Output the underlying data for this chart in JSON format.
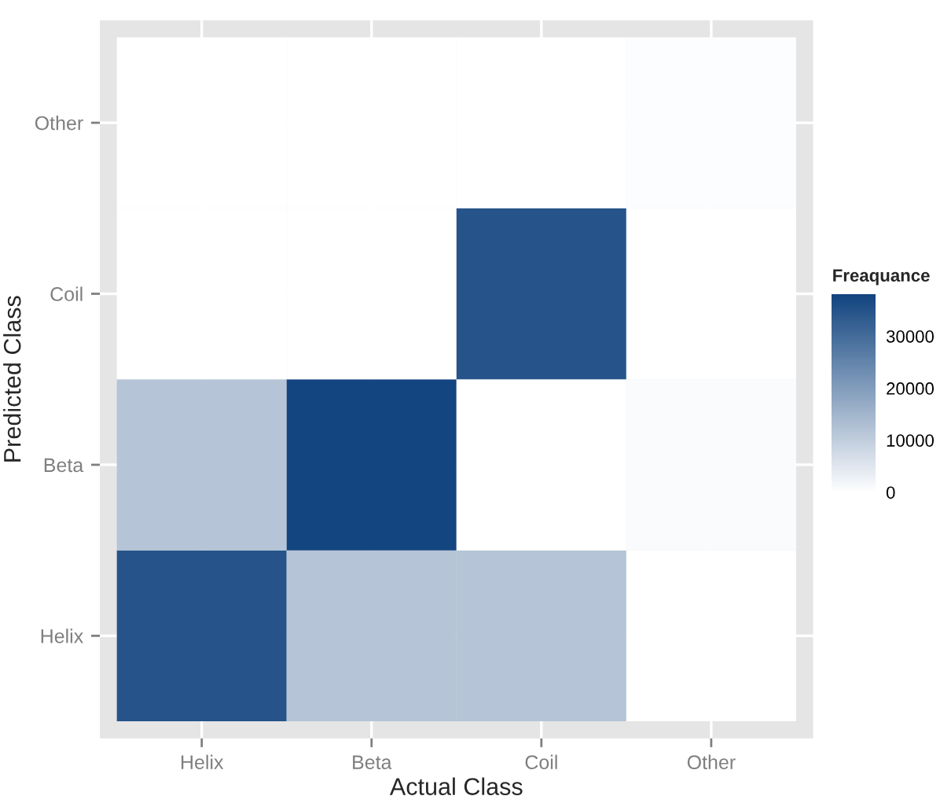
{
  "chart_data": {
    "type": "heatmap",
    "xlabel": "Actual Class",
    "ylabel": "Predicted Class",
    "clabel": "Freaquance",
    "categories": [
      "Helix",
      "Beta",
      "Coil",
      "Other"
    ],
    "y_categories": [
      "Other",
      "Coil",
      "Beta",
      "Helix"
    ],
    "cells": [
      [
        0,
        0,
        0,
        500
      ],
      [
        0,
        0,
        35000,
        0
      ],
      [
        12000,
        38000,
        0,
        800
      ],
      [
        35000,
        12000,
        12000,
        0
      ]
    ],
    "clim": [
      0,
      38000
    ],
    "cticks": [
      0,
      10000,
      20000,
      30000
    ],
    "colors": [
      "#ffffff",
      "#134580"
    ],
    "grid": true
  }
}
